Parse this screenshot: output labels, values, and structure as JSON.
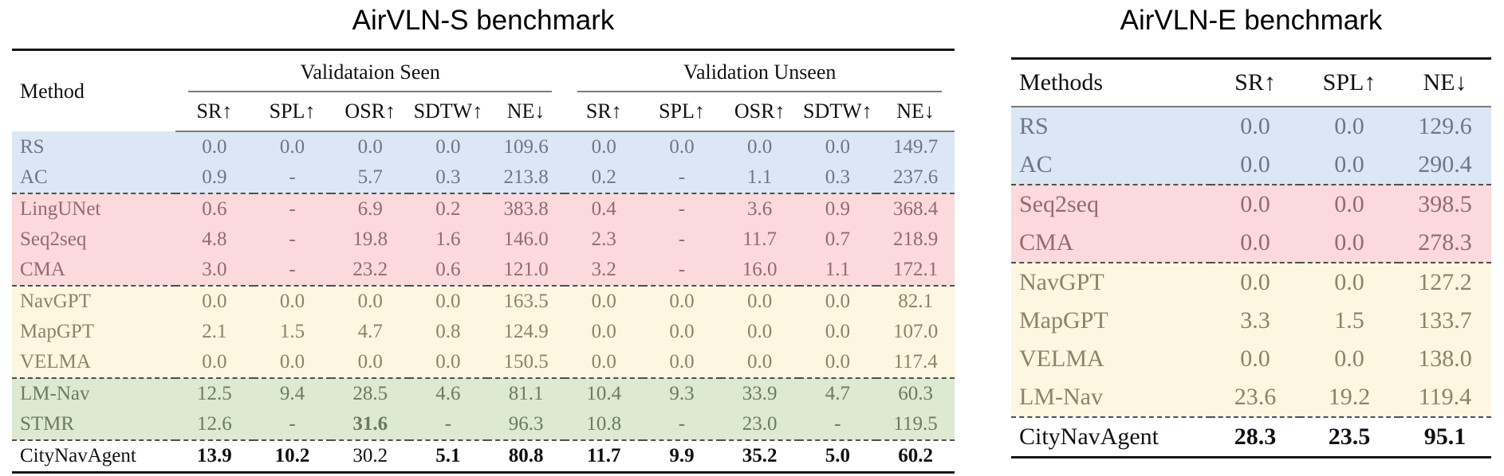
{
  "titles": {
    "left": "AirVLN-S benchmark",
    "right": "AirVLN-E benchmark"
  },
  "left_table": {
    "method_header": "Method",
    "group_headers": [
      "Validataion Seen",
      "Validation Unseen"
    ],
    "metric_headers": [
      "SR↑",
      "SPL↑",
      "OSR↑",
      "SDTW↑",
      "NE↓"
    ],
    "rows": [
      {
        "method": "RS",
        "group": "blue",
        "seen": [
          "0.0",
          "0.0",
          "0.0",
          "0.0",
          "109.6"
        ],
        "unseen": [
          "0.0",
          "0.0",
          "0.0",
          "0.0",
          "149.7"
        ]
      },
      {
        "method": "AC",
        "group": "blue",
        "seen": [
          "0.9",
          "-",
          "5.7",
          "0.3",
          "213.8"
        ],
        "unseen": [
          "0.2",
          "-",
          "1.1",
          "0.3",
          "237.6"
        ]
      },
      {
        "method": "LingUNet",
        "group": "pink",
        "seen": [
          "0.6",
          "-",
          "6.9",
          "0.2",
          "383.8"
        ],
        "unseen": [
          "0.4",
          "-",
          "3.6",
          "0.9",
          "368.4"
        ]
      },
      {
        "method": "Seq2seq",
        "group": "pink",
        "seen": [
          "4.8",
          "-",
          "19.8",
          "1.6",
          "146.0"
        ],
        "unseen": [
          "2.3",
          "-",
          "11.7",
          "0.7",
          "218.9"
        ]
      },
      {
        "method": "CMA",
        "group": "pink",
        "seen": [
          "3.0",
          "-",
          "23.2",
          "0.6",
          "121.0"
        ],
        "unseen": [
          "3.2",
          "-",
          "16.0",
          "1.1",
          "172.1"
        ]
      },
      {
        "method": "NavGPT",
        "group": "yellow",
        "seen": [
          "0.0",
          "0.0",
          "0.0",
          "0.0",
          "163.5"
        ],
        "unseen": [
          "0.0",
          "0.0",
          "0.0",
          "0.0",
          "82.1"
        ]
      },
      {
        "method": "MapGPT",
        "group": "yellow",
        "seen": [
          "2.1",
          "1.5",
          "4.7",
          "0.8",
          "124.9"
        ],
        "unseen": [
          "0.0",
          "0.0",
          "0.0",
          "0.0",
          "107.0"
        ]
      },
      {
        "method": "VELMA",
        "group": "yellow",
        "seen": [
          "0.0",
          "0.0",
          "0.0",
          "0.0",
          "150.5"
        ],
        "unseen": [
          "0.0",
          "0.0",
          "0.0",
          "0.0",
          "117.4"
        ]
      },
      {
        "method": "LM-Nav",
        "group": "green",
        "seen": [
          "12.5",
          "9.4",
          "28.5",
          "4.6",
          "81.1"
        ],
        "unseen": [
          "10.4",
          "9.3",
          "33.9",
          "4.7",
          "60.3"
        ]
      },
      {
        "method": "STMR",
        "group": "green",
        "seen": [
          "12.6",
          "-",
          "31.6",
          "-",
          "96.3"
        ],
        "seen_bold": [
          0,
          0,
          1,
          0,
          0
        ],
        "unseen": [
          "10.8",
          "-",
          "23.0",
          "-",
          "119.5"
        ]
      },
      {
        "method": "CityNavAgent",
        "group": "white",
        "seen": [
          "13.9",
          "10.2",
          "30.2",
          "5.1",
          "80.8"
        ],
        "seen_bold": [
          1,
          1,
          0,
          1,
          1
        ],
        "unseen": [
          "11.7",
          "9.9",
          "35.2",
          "5.0",
          "60.2"
        ],
        "unseen_bold": [
          1,
          1,
          1,
          1,
          1
        ]
      }
    ]
  },
  "right_table": {
    "headers": [
      "Methods",
      "SR↑",
      "SPL↑",
      "NE↓"
    ],
    "rows": [
      {
        "method": "RS",
        "group": "blue",
        "values": [
          "0.0",
          "0.0",
          "129.6"
        ]
      },
      {
        "method": "AC",
        "group": "blue",
        "values": [
          "0.0",
          "0.0",
          "290.4"
        ]
      },
      {
        "method": "Seq2seq",
        "group": "pink",
        "values": [
          "0.0",
          "0.0",
          "398.5"
        ]
      },
      {
        "method": "CMA",
        "group": "pink",
        "values": [
          "0.0",
          "0.0",
          "278.3"
        ]
      },
      {
        "method": "NavGPT",
        "group": "yellow",
        "values": [
          "0.0",
          "0.0",
          "127.2"
        ]
      },
      {
        "method": "MapGPT",
        "group": "yellow",
        "values": [
          "3.3",
          "1.5",
          "133.7"
        ]
      },
      {
        "method": "VELMA",
        "group": "yellow",
        "values": [
          "0.0",
          "0.0",
          "138.0"
        ]
      },
      {
        "method": "LM-Nav",
        "group": "yellow",
        "values": [
          "23.6",
          "19.2",
          "119.4"
        ]
      },
      {
        "method": "CityNavAgent",
        "group": "white",
        "values": [
          "28.3",
          "23.5",
          "95.1"
        ],
        "bold": true
      }
    ]
  },
  "colors": {
    "group_bg": {
      "blue": "#dbe7f5",
      "pink": "#fbd9dd",
      "yellow": "#fdf6e1",
      "green": "#dde9d3",
      "white": "#ffffff"
    },
    "group_text": {
      "blue": "#6a7888",
      "pink": "#966a6f",
      "yellow": "#8b8468",
      "green": "#6b7b60",
      "white": "#111111"
    },
    "rule_thick": "#161616",
    "rule_thin": "#7a7a7a",
    "dashed_separator": "#4f4f4f"
  }
}
